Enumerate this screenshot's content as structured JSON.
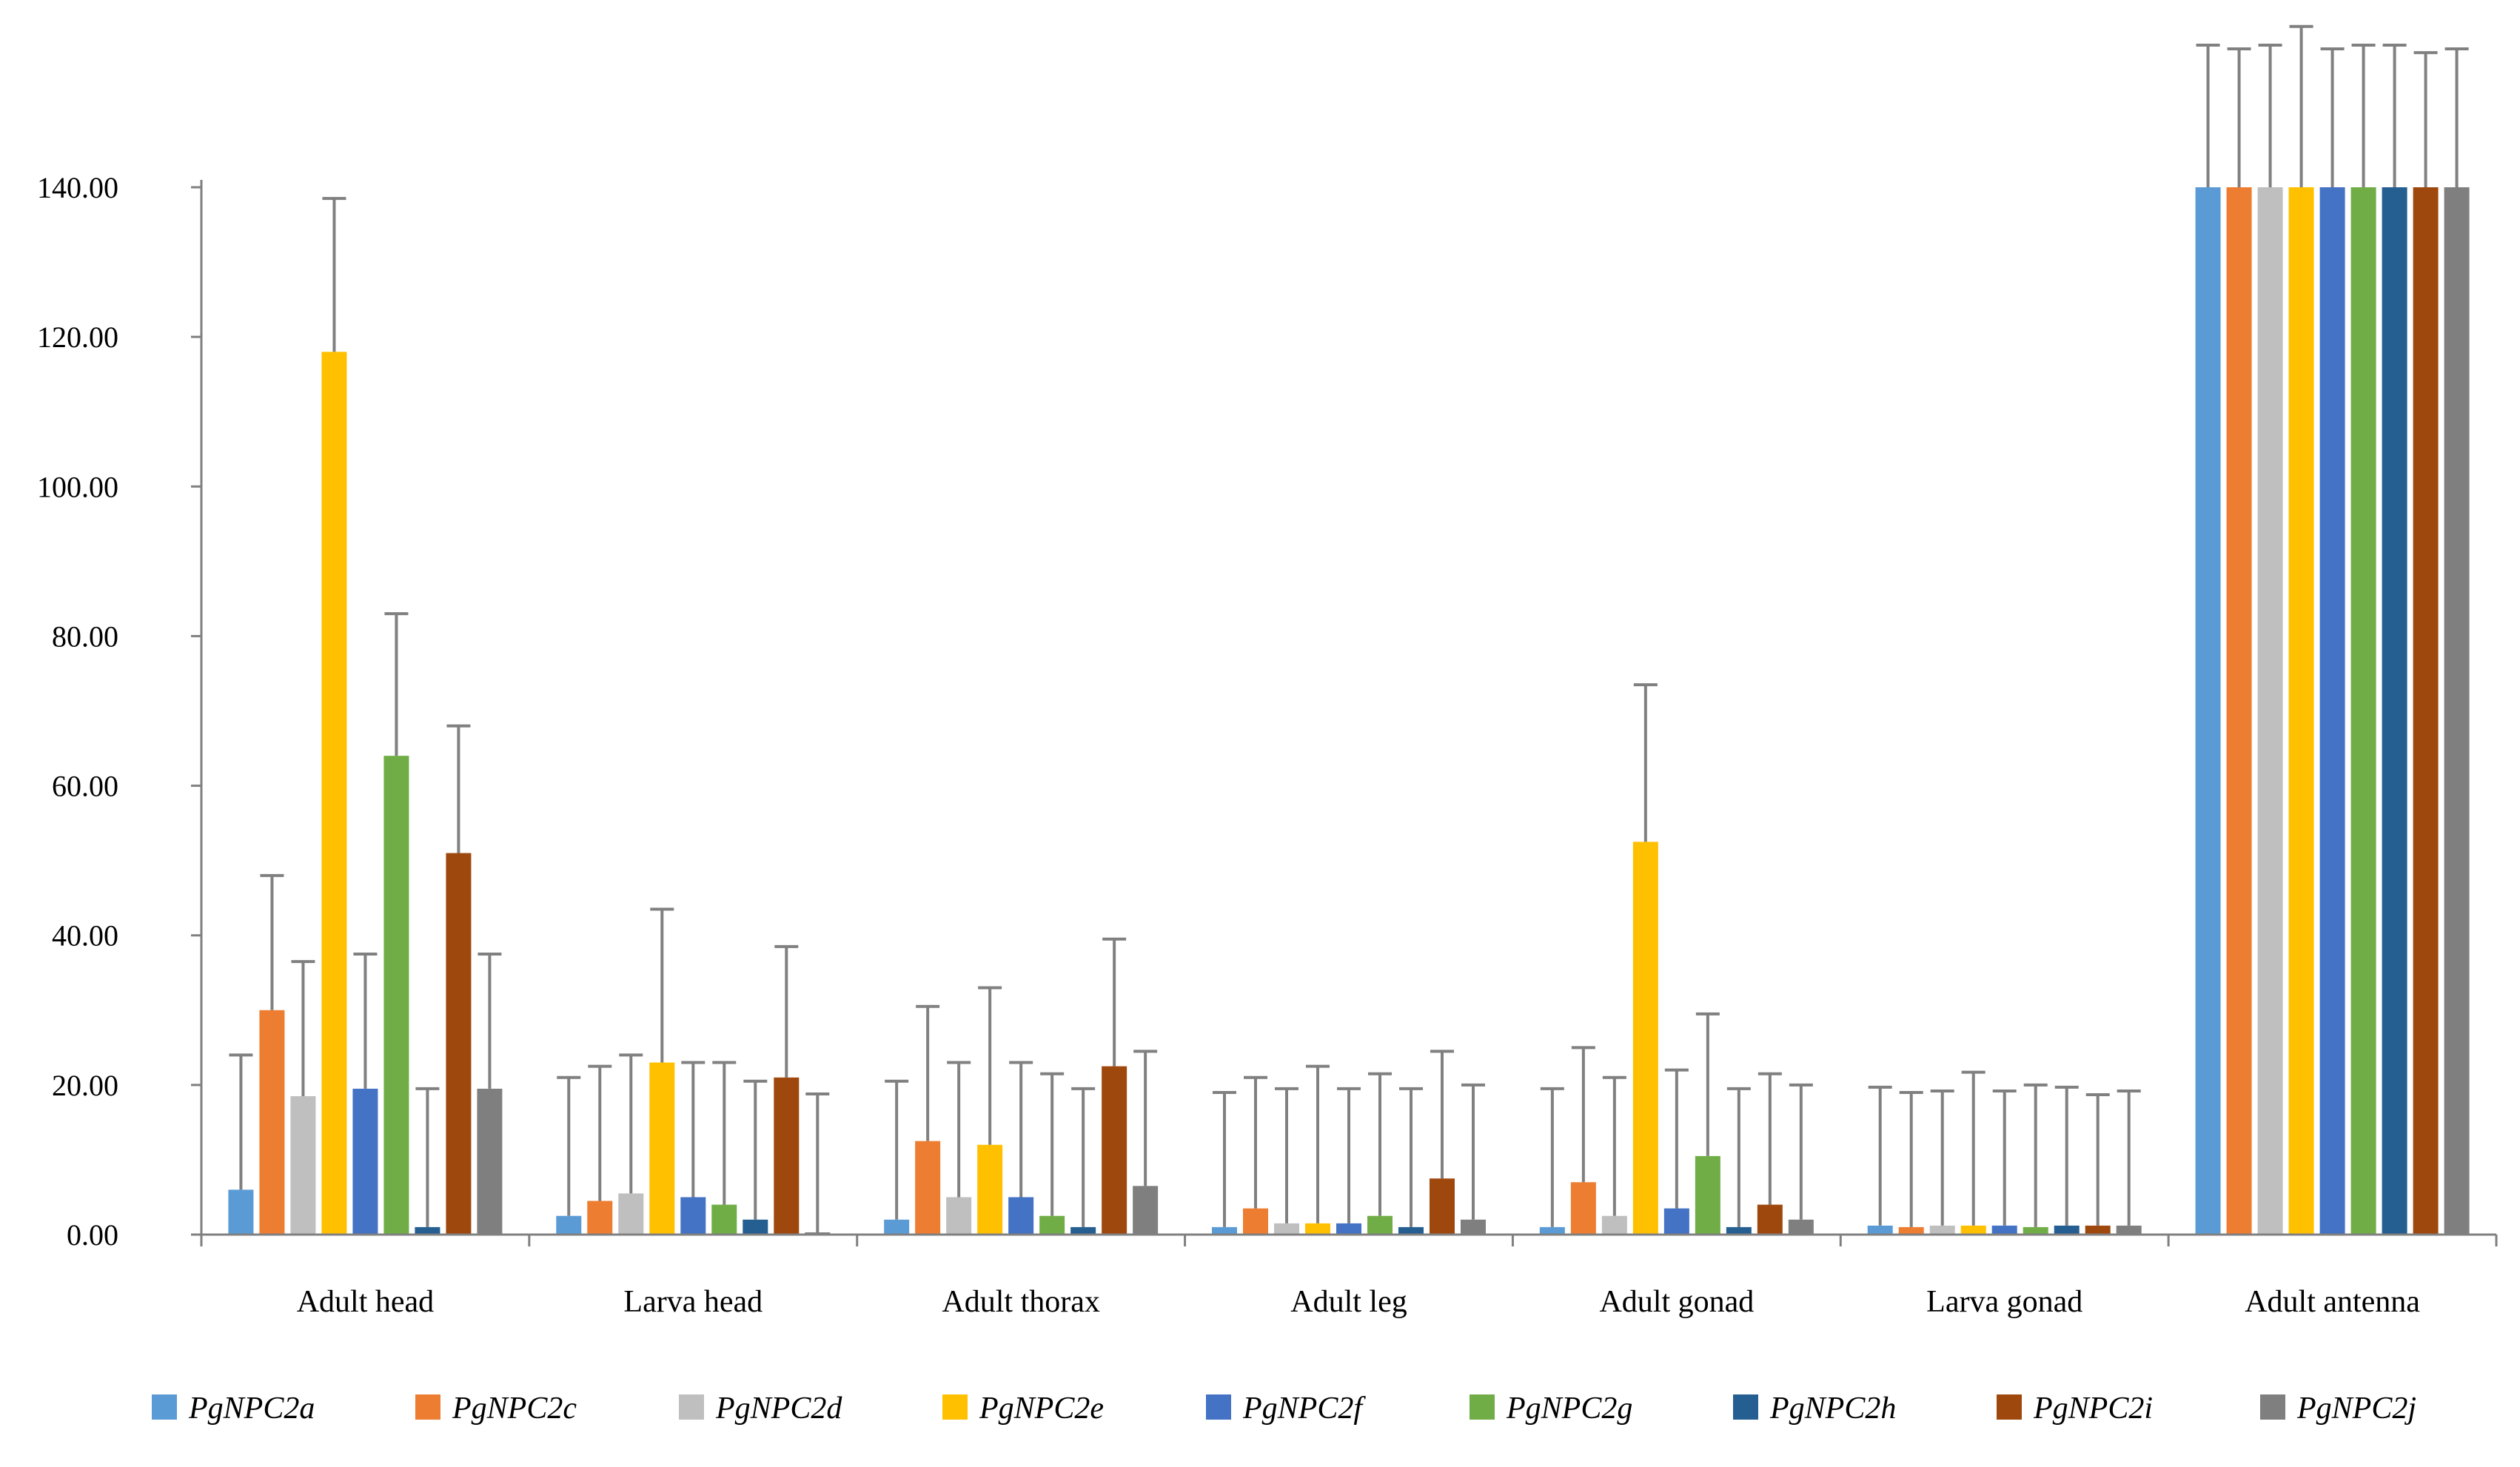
{
  "chart_data": {
    "type": "bar",
    "title": "",
    "xlabel": "",
    "ylabel": "",
    "ylim": [
      0,
      140
    ],
    "yticks": [
      "0.00",
      "20.00",
      "40.00",
      "60.00",
      "80.00",
      "100.00",
      "120.00",
      "140.00"
    ],
    "categories": [
      "Adult head",
      "Larva head",
      "Adult thorax",
      "Adult leg",
      "Adult gonad",
      "Larva gonad",
      "Adult antenna"
    ],
    "legend_position": "bottom",
    "series": [
      {
        "name": "PgNPC2a",
        "color": "#5b9bd5",
        "values": [
          6.0,
          2.5,
          2.0,
          1.0,
          1.0,
          1.2,
          140
        ],
        "errors": [
          18.0,
          18.5,
          18.5,
          18.0,
          18.5,
          18.5,
          19.0
        ]
      },
      {
        "name": "PgNPC2c",
        "color": "#ed7d31",
        "values": [
          30.0,
          4.5,
          12.5,
          3.5,
          7.0,
          1.0,
          140
        ],
        "errors": [
          18.0,
          18.0,
          18.0,
          17.5,
          18.0,
          18.0,
          18.5
        ]
      },
      {
        "name": "PgNPC2d",
        "color": "#bfbfbf",
        "values": [
          18.5,
          5.5,
          5.0,
          1.5,
          2.5,
          1.2,
          140
        ],
        "errors": [
          18.0,
          18.5,
          18.0,
          18.0,
          18.5,
          18.0,
          19.0
        ]
      },
      {
        "name": "PgNPC2e",
        "color": "#ffc000",
        "values": [
          118.0,
          23.0,
          12.0,
          1.5,
          52.5,
          1.2,
          140
        ],
        "errors": [
          20.5,
          20.5,
          21.0,
          21.0,
          21.0,
          20.5,
          21.5
        ]
      },
      {
        "name": "PgNPC2f",
        "color": "#4472c4",
        "values": [
          19.5,
          5.0,
          5.0,
          1.5,
          3.5,
          1.2,
          140
        ],
        "errors": [
          18.0,
          18.0,
          18.0,
          18.0,
          18.5,
          18.0,
          18.5
        ]
      },
      {
        "name": "PgNPC2g",
        "color": "#70ad47",
        "values": [
          64.0,
          4.0,
          2.5,
          2.5,
          10.5,
          1.0,
          140
        ],
        "errors": [
          19.0,
          19.0,
          19.0,
          19.0,
          19.0,
          19.0,
          19.0
        ]
      },
      {
        "name": "PgNPC2h",
        "color": "#255e91",
        "values": [
          1.0,
          2.0,
          1.0,
          1.0,
          1.0,
          1.2,
          140
        ],
        "errors": [
          18.5,
          18.5,
          18.5,
          18.5,
          18.5,
          18.5,
          19.0
        ]
      },
      {
        "name": "PgNPC2i",
        "color": "#9e480e",
        "values": [
          51.0,
          21.0,
          22.5,
          7.5,
          4.0,
          1.2,
          140
        ],
        "errors": [
          17.0,
          17.5,
          17.0,
          17.0,
          17.5,
          17.5,
          18.0
        ]
      },
      {
        "name": "PgNPC2j",
        "color": "#7f7f7f",
        "values": [
          19.5,
          0.3,
          6.5,
          2.0,
          2.0,
          1.2,
          140
        ],
        "errors": [
          18.0,
          18.5,
          18.0,
          18.0,
          18.0,
          18.0,
          18.5
        ]
      }
    ]
  }
}
